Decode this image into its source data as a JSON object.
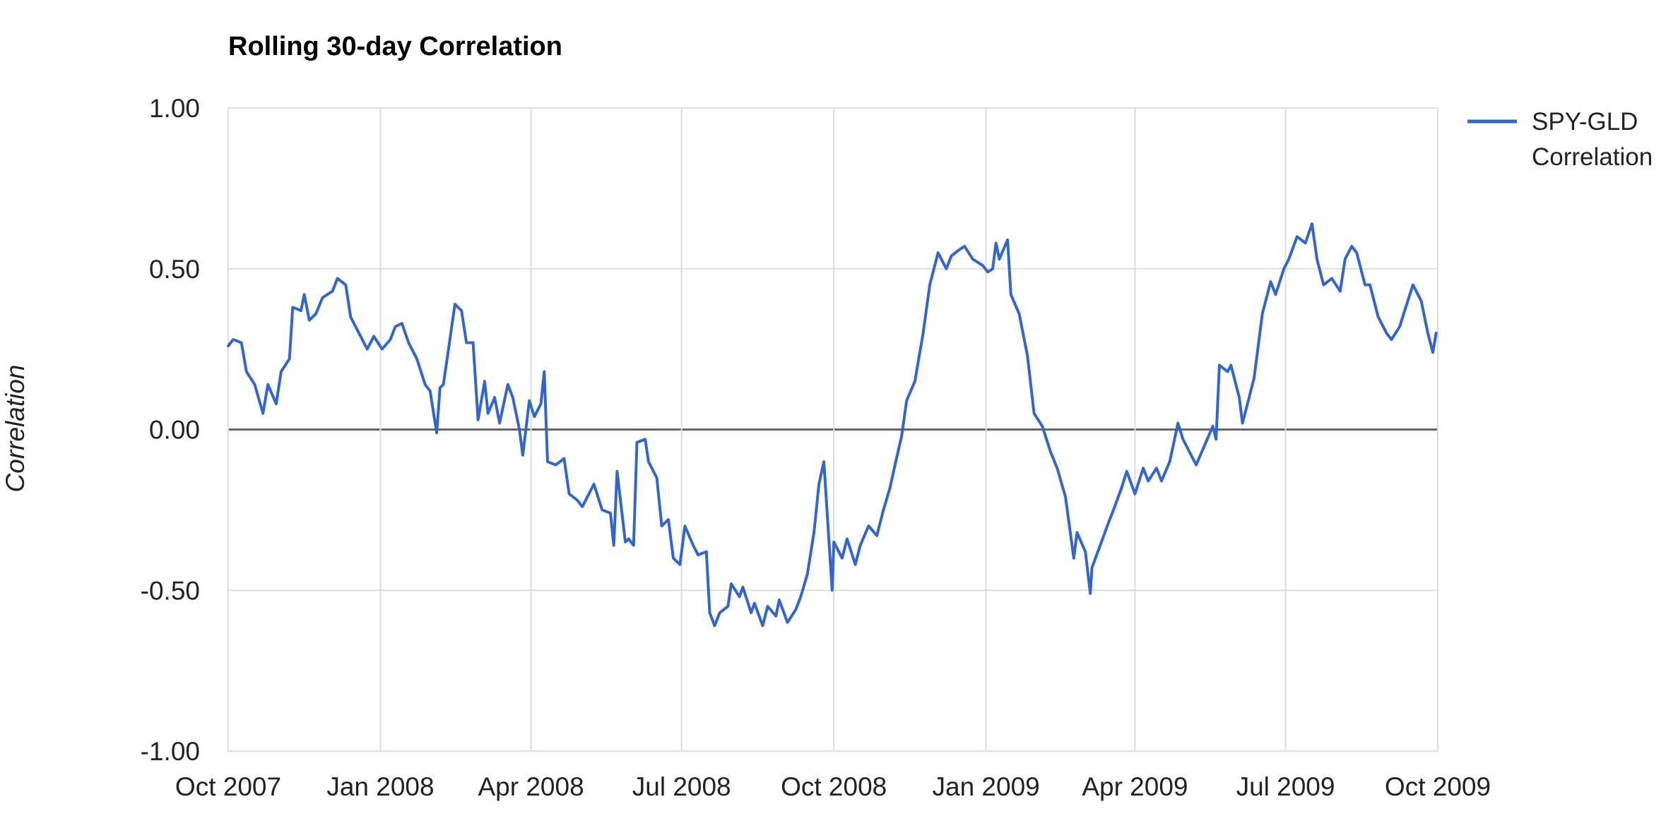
{
  "chart_data": {
    "type": "line",
    "title": "Rolling 30-day Correlation",
    "xlabel": "",
    "ylabel": "Correlation",
    "ylim": [
      -1.0,
      1.0
    ],
    "y_ticks": [
      "1.00",
      "0.50",
      "0.00",
      "-0.50",
      "-1.00"
    ],
    "y_tick_values": [
      1.0,
      0.5,
      0.0,
      -0.5,
      -1.0
    ],
    "x_range": [
      "2007-10-01",
      "2009-10-01"
    ],
    "x_ticks": [
      {
        "date": "2007-10-01",
        "label": "Oct 2007"
      },
      {
        "date": "2008-01-01",
        "label": "Jan 2008"
      },
      {
        "date": "2008-04-01",
        "label": "Apr 2008"
      },
      {
        "date": "2008-07-01",
        "label": "Jul 2008"
      },
      {
        "date": "2008-10-01",
        "label": "Oct 2008"
      },
      {
        "date": "2009-01-01",
        "label": "Jan 2009"
      },
      {
        "date": "2009-04-01",
        "label": "Apr 2009"
      },
      {
        "date": "2009-07-01",
        "label": "Jul 2009"
      },
      {
        "date": "2009-10-01",
        "label": "Oct 2009"
      }
    ],
    "grid": true,
    "legend_position": "right",
    "colors": {
      "series": "#3366cc",
      "grid": "#dddddd",
      "zero_line": "#666666"
    },
    "series": [
      {
        "name": "SPY-GLD Correlation",
        "points": [
          [
            "2007-10-01",
            0.26
          ],
          [
            "2007-10-04",
            0.28
          ],
          [
            "2007-10-09",
            0.27
          ],
          [
            "2007-10-12",
            0.18
          ],
          [
            "2007-10-17",
            0.14
          ],
          [
            "2007-10-22",
            0.05
          ],
          [
            "2007-10-25",
            0.14
          ],
          [
            "2007-10-30",
            0.08
          ],
          [
            "2007-11-02",
            0.18
          ],
          [
            "2007-11-07",
            0.22
          ],
          [
            "2007-11-09",
            0.38
          ],
          [
            "2007-11-14",
            0.37
          ],
          [
            "2007-11-16",
            0.42
          ],
          [
            "2007-11-19",
            0.34
          ],
          [
            "2007-11-23",
            0.36
          ],
          [
            "2007-11-27",
            0.41
          ],
          [
            "2007-12-03",
            0.43
          ],
          [
            "2007-12-06",
            0.47
          ],
          [
            "2007-12-11",
            0.45
          ],
          [
            "2007-12-14",
            0.35
          ],
          [
            "2007-12-19",
            0.3
          ],
          [
            "2007-12-24",
            0.25
          ],
          [
            "2007-12-28",
            0.29
          ],
          [
            "2008-01-02",
            0.25
          ],
          [
            "2008-01-07",
            0.28
          ],
          [
            "2008-01-10",
            0.32
          ],
          [
            "2008-01-14",
            0.33
          ],
          [
            "2008-01-18",
            0.27
          ],
          [
            "2008-01-23",
            0.22
          ],
          [
            "2008-01-28",
            0.14
          ],
          [
            "2008-01-31",
            0.12
          ],
          [
            "2008-02-04",
            -0.01
          ],
          [
            "2008-02-06",
            0.13
          ],
          [
            "2008-02-08",
            0.14
          ],
          [
            "2008-02-12",
            0.28
          ],
          [
            "2008-02-15",
            0.39
          ],
          [
            "2008-02-19",
            0.37
          ],
          [
            "2008-02-22",
            0.27
          ],
          [
            "2008-02-26",
            0.27
          ],
          [
            "2008-02-29",
            0.03
          ],
          [
            "2008-03-04",
            0.15
          ],
          [
            "2008-03-06",
            0.05
          ],
          [
            "2008-03-10",
            0.1
          ],
          [
            "2008-03-13",
            0.02
          ],
          [
            "2008-03-18",
            0.14
          ],
          [
            "2008-03-21",
            0.1
          ],
          [
            "2008-03-25",
            0.0
          ],
          [
            "2008-03-27",
            -0.08
          ],
          [
            "2008-03-31",
            0.09
          ],
          [
            "2008-04-03",
            0.04
          ],
          [
            "2008-04-07",
            0.08
          ],
          [
            "2008-04-09",
            0.18
          ],
          [
            "2008-04-11",
            -0.1
          ],
          [
            "2008-04-16",
            -0.11
          ],
          [
            "2008-04-21",
            -0.09
          ],
          [
            "2008-04-24",
            -0.2
          ],
          [
            "2008-04-29",
            -0.22
          ],
          [
            "2008-05-02",
            -0.24
          ],
          [
            "2008-05-06",
            -0.2
          ],
          [
            "2008-05-09",
            -0.17
          ],
          [
            "2008-05-14",
            -0.25
          ],
          [
            "2008-05-19",
            -0.26
          ],
          [
            "2008-05-21",
            -0.36
          ],
          [
            "2008-05-23",
            -0.13
          ],
          [
            "2008-05-28",
            -0.35
          ],
          [
            "2008-05-30",
            -0.34
          ],
          [
            "2008-06-02",
            -0.36
          ],
          [
            "2008-06-04",
            -0.04
          ],
          [
            "2008-06-09",
            -0.03
          ],
          [
            "2008-06-11",
            -0.1
          ],
          [
            "2008-06-16",
            -0.15
          ],
          [
            "2008-06-19",
            -0.3
          ],
          [
            "2008-06-23",
            -0.28
          ],
          [
            "2008-06-26",
            -0.4
          ],
          [
            "2008-06-30",
            -0.42
          ],
          [
            "2008-07-03",
            -0.3
          ],
          [
            "2008-07-08",
            -0.36
          ],
          [
            "2008-07-11",
            -0.39
          ],
          [
            "2008-07-16",
            -0.38
          ],
          [
            "2008-07-18",
            -0.57
          ],
          [
            "2008-07-21",
            -0.61
          ],
          [
            "2008-07-24",
            -0.57
          ],
          [
            "2008-07-29",
            -0.55
          ],
          [
            "2008-07-31",
            -0.48
          ],
          [
            "2008-08-05",
            -0.52
          ],
          [
            "2008-08-07",
            -0.49
          ],
          [
            "2008-08-12",
            -0.57
          ],
          [
            "2008-08-14",
            -0.54
          ],
          [
            "2008-08-19",
            -0.61
          ],
          [
            "2008-08-22",
            -0.55
          ],
          [
            "2008-08-27",
            -0.58
          ],
          [
            "2008-08-29",
            -0.53
          ],
          [
            "2008-09-03",
            -0.6
          ],
          [
            "2008-09-08",
            -0.56
          ],
          [
            "2008-09-11",
            -0.52
          ],
          [
            "2008-09-15",
            -0.45
          ],
          [
            "2008-09-19",
            -0.32
          ],
          [
            "2008-09-22",
            -0.17
          ],
          [
            "2008-09-25",
            -0.1
          ],
          [
            "2008-09-30",
            -0.5
          ],
          [
            "2008-10-01",
            -0.35
          ],
          [
            "2008-10-06",
            -0.4
          ],
          [
            "2008-10-09",
            -0.34
          ],
          [
            "2008-10-14",
            -0.42
          ],
          [
            "2008-10-17",
            -0.36
          ],
          [
            "2008-10-22",
            -0.3
          ],
          [
            "2008-10-27",
            -0.33
          ],
          [
            "2008-10-31",
            -0.25
          ],
          [
            "2008-11-04",
            -0.18
          ],
          [
            "2008-11-07",
            -0.11
          ],
          [
            "2008-11-11",
            -0.02
          ],
          [
            "2008-11-14",
            0.09
          ],
          [
            "2008-11-19",
            0.15
          ],
          [
            "2008-11-24",
            0.3
          ],
          [
            "2008-11-28",
            0.45
          ],
          [
            "2008-12-03",
            0.55
          ],
          [
            "2008-12-08",
            0.5
          ],
          [
            "2008-12-11",
            0.54
          ],
          [
            "2008-12-16",
            0.56
          ],
          [
            "2008-12-19",
            0.57
          ],
          [
            "2008-12-24",
            0.53
          ],
          [
            "2008-12-30",
            0.51
          ],
          [
            "2009-01-02",
            0.49
          ],
          [
            "2009-01-05",
            0.5
          ],
          [
            "2009-01-07",
            0.58
          ],
          [
            "2009-01-09",
            0.53
          ],
          [
            "2009-01-14",
            0.59
          ],
          [
            "2009-01-16",
            0.42
          ],
          [
            "2009-01-21",
            0.36
          ],
          [
            "2009-01-26",
            0.23
          ],
          [
            "2009-01-30",
            0.05
          ],
          [
            "2009-02-04",
            0.01
          ],
          [
            "2009-02-09",
            -0.07
          ],
          [
            "2009-02-13",
            -0.12
          ],
          [
            "2009-02-18",
            -0.21
          ],
          [
            "2009-02-23",
            -0.4
          ],
          [
            "2009-02-25",
            -0.32
          ],
          [
            "2009-03-02",
            -0.38
          ],
          [
            "2009-03-05",
            -0.51
          ],
          [
            "2009-03-06",
            -0.43
          ],
          [
            "2009-03-11",
            -0.36
          ],
          [
            "2009-03-16",
            -0.29
          ],
          [
            "2009-03-19",
            -0.25
          ],
          [
            "2009-03-24",
            -0.18
          ],
          [
            "2009-03-27",
            -0.13
          ],
          [
            "2009-04-01",
            -0.2
          ],
          [
            "2009-04-06",
            -0.12
          ],
          [
            "2009-04-09",
            -0.16
          ],
          [
            "2009-04-14",
            -0.12
          ],
          [
            "2009-04-17",
            -0.16
          ],
          [
            "2009-04-22",
            -0.1
          ],
          [
            "2009-04-27",
            0.02
          ],
          [
            "2009-04-30",
            -0.03
          ],
          [
            "2009-05-05",
            -0.08
          ],
          [
            "2009-05-08",
            -0.11
          ],
          [
            "2009-05-13",
            -0.05
          ],
          [
            "2009-05-18",
            0.01
          ],
          [
            "2009-05-20",
            -0.03
          ],
          [
            "2009-05-22",
            0.2
          ],
          [
            "2009-05-27",
            0.18
          ],
          [
            "2009-05-29",
            0.2
          ],
          [
            "2009-06-03",
            0.1
          ],
          [
            "2009-06-05",
            0.02
          ],
          [
            "2009-06-09",
            0.1
          ],
          [
            "2009-06-12",
            0.16
          ],
          [
            "2009-06-17",
            0.36
          ],
          [
            "2009-06-22",
            0.46
          ],
          [
            "2009-06-25",
            0.42
          ],
          [
            "2009-06-30",
            0.5
          ],
          [
            "2009-07-03",
            0.53
          ],
          [
            "2009-07-08",
            0.6
          ],
          [
            "2009-07-13",
            0.58
          ],
          [
            "2009-07-17",
            0.64
          ],
          [
            "2009-07-20",
            0.53
          ],
          [
            "2009-07-24",
            0.45
          ],
          [
            "2009-07-29",
            0.47
          ],
          [
            "2009-08-03",
            0.43
          ],
          [
            "2009-08-06",
            0.53
          ],
          [
            "2009-08-10",
            0.57
          ],
          [
            "2009-08-13",
            0.55
          ],
          [
            "2009-08-18",
            0.45
          ],
          [
            "2009-08-21",
            0.45
          ],
          [
            "2009-08-26",
            0.35
          ],
          [
            "2009-08-31",
            0.3
          ],
          [
            "2009-09-03",
            0.28
          ],
          [
            "2009-09-08",
            0.32
          ],
          [
            "2009-09-11",
            0.37
          ],
          [
            "2009-09-16",
            0.45
          ],
          [
            "2009-09-21",
            0.4
          ],
          [
            "2009-09-25",
            0.3
          ],
          [
            "2009-09-28",
            0.24
          ],
          [
            "2009-09-30",
            0.3
          ]
        ]
      }
    ]
  }
}
